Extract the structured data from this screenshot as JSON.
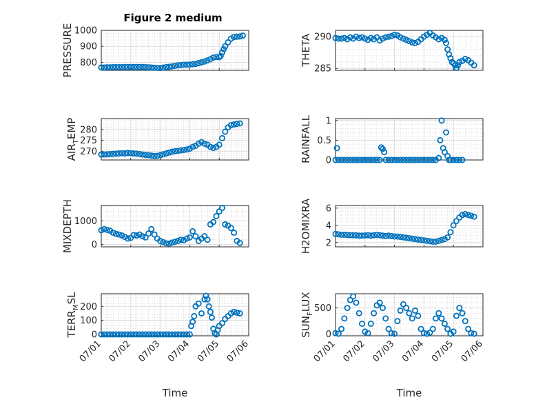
{
  "figure": {
    "title": "Figure 2 medium"
  },
  "chart_data": [
    {
      "type": "scatter",
      "id": "pressure",
      "ylabel_parts": [
        {
          "t": "PRESSURE",
          "sub": false
        }
      ],
      "ylim": [
        750,
        1000
      ],
      "yticks": [
        {
          "v": 800,
          "label": "800"
        },
        {
          "v": 900,
          "label": "900"
        },
        {
          "v": 1000,
          "label": "1000"
        }
      ],
      "x": [
        0,
        0.1,
        0.2,
        0.3,
        0.4,
        0.5,
        0.6,
        0.7,
        0.8,
        0.9,
        1.0,
        1.1,
        1.2,
        1.3,
        1.4,
        1.5,
        1.6,
        1.7,
        1.8,
        1.9,
        2.0,
        2.1,
        2.2,
        2.3,
        2.4,
        2.5,
        2.6,
        2.7,
        2.8,
        2.9,
        3.0,
        3.1,
        3.2,
        3.3,
        3.4,
        3.5,
        3.6,
        3.7,
        3.8,
        3.9,
        4.0,
        4.05,
        4.1,
        4.15,
        4.2,
        4.3,
        4.4,
        4.5,
        4.6,
        4.7,
        4.8
      ],
      "y": [
        768,
        768,
        769,
        769,
        770,
        770,
        770,
        770,
        771,
        771,
        771,
        771,
        771,
        771,
        771,
        770,
        769,
        768,
        766,
        765,
        764,
        767,
        770,
        772,
        775,
        778,
        781,
        783,
        785,
        785,
        786,
        788,
        790,
        795,
        800,
        805,
        812,
        820,
        830,
        833,
        832,
        840,
        862,
        882,
        900,
        925,
        948,
        958,
        960,
        962,
        967
      ]
    },
    {
      "type": "scatter",
      "id": "theta",
      "ylabel_parts": [
        {
          "t": "THETA",
          "sub": false
        }
      ],
      "ylim": [
        284.7,
        291.0
      ],
      "yticks": [
        {
          "v": 285,
          "label": "285"
        },
        {
          "v": 290,
          "label": "290"
        }
      ],
      "x": [
        0,
        0.1,
        0.2,
        0.3,
        0.4,
        0.5,
        0.6,
        0.7,
        0.8,
        0.9,
        1.0,
        1.1,
        1.2,
        1.3,
        1.4,
        1.5,
        1.6,
        1.7,
        1.8,
        1.9,
        2.0,
        2.1,
        2.2,
        2.3,
        2.4,
        2.5,
        2.6,
        2.7,
        2.8,
        2.9,
        3.0,
        3.1,
        3.2,
        3.3,
        3.4,
        3.5,
        3.6,
        3.7,
        3.75,
        3.8,
        3.85,
        3.9,
        3.95,
        4.0,
        4.05,
        4.1,
        4.15,
        4.2,
        4.3,
        4.4,
        4.5,
        4.6,
        4.7
      ],
      "y": [
        289.8,
        289.7,
        289.7,
        289.8,
        289.6,
        289.9,
        289.7,
        290.0,
        289.8,
        289.9,
        289.7,
        289.5,
        289.8,
        289.6,
        289.9,
        289.4,
        289.7,
        289.9,
        290.0,
        290.1,
        290.3,
        290.2,
        289.9,
        289.7,
        289.5,
        289.3,
        289.1,
        289.0,
        289.2,
        289.6,
        290.0,
        290.3,
        290.6,
        290.2,
        289.9,
        289.6,
        289.8,
        289.5,
        289.0,
        288.0,
        287.2,
        286.6,
        286.0,
        285.8,
        285.5,
        285.1,
        285.5,
        286.0,
        286.2,
        286.5,
        286.3,
        285.9,
        285.5
      ]
    },
    {
      "type": "scatter",
      "id": "air_temp",
      "ylabel_parts": [
        {
          "t": "AIR",
          "sub": false
        },
        {
          "t": "T",
          "sub": true
        },
        {
          "t": "EMP",
          "sub": false
        }
      ],
      "ylim": [
        266,
        285
      ],
      "yticks": [
        {
          "v": 270,
          "label": "270"
        },
        {
          "v": 275,
          "label": "275"
        },
        {
          "v": 280,
          "label": "280"
        }
      ],
      "x": [
        0,
        0.1,
        0.2,
        0.3,
        0.4,
        0.5,
        0.6,
        0.7,
        0.8,
        0.9,
        1.0,
        1.1,
        1.2,
        1.3,
        1.4,
        1.5,
        1.6,
        1.7,
        1.8,
        1.9,
        2.0,
        2.1,
        2.2,
        2.3,
        2.4,
        2.5,
        2.6,
        2.7,
        2.8,
        2.9,
        3.0,
        3.1,
        3.2,
        3.3,
        3.4,
        3.5,
        3.6,
        3.7,
        3.8,
        3.9,
        4.0,
        4.1,
        4.2,
        4.3,
        4.4,
        4.5,
        4.6,
        4.7
      ],
      "y": [
        268.5,
        268.5,
        268.6,
        268.7,
        268.8,
        268.9,
        269.0,
        269.1,
        269.0,
        269.2,
        269.1,
        269.0,
        268.9,
        268.7,
        268.5,
        268.3,
        268.2,
        268.0,
        267.8,
        267.9,
        268.2,
        268.6,
        269.0,
        269.4,
        269.8,
        270.0,
        270.2,
        270.4,
        270.6,
        270.8,
        271.2,
        272.0,
        272.5,
        273.5,
        274.2,
        273.5,
        273.0,
        272.0,
        271.5,
        272.0,
        273.0,
        276.0,
        279.0,
        281.0,
        282.0,
        282.3,
        282.6,
        282.8
      ]
    },
    {
      "type": "scatter",
      "id": "rainfall",
      "ylabel_parts": [
        {
          "t": "RAINFALL",
          "sub": false
        }
      ],
      "ylim": [
        0,
        1.05
      ],
      "yticks": [
        {
          "v": 0,
          "label": "0"
        },
        {
          "v": 0.5,
          "label": "0.5"
        },
        {
          "v": 1,
          "label": "1"
        }
      ],
      "x": [
        0,
        0.05,
        0.1,
        0.2,
        0.3,
        0.4,
        0.5,
        0.6,
        0.7,
        0.8,
        0.9,
        1.0,
        1.1,
        1.2,
        1.3,
        1.4,
        1.5,
        1.55,
        1.6,
        1.65,
        1.7,
        1.8,
        1.9,
        2.0,
        2.1,
        2.2,
        2.3,
        2.4,
        2.5,
        2.6,
        2.7,
        2.8,
        2.9,
        3.0,
        3.1,
        3.2,
        3.3,
        3.4,
        3.5,
        3.55,
        3.6,
        3.65,
        3.7,
        3.75,
        3.8,
        3.85,
        3.9,
        4.0,
        4.1,
        4.2,
        4.3
      ],
      "y": [
        0,
        0.3,
        0,
        0,
        0,
        0,
        0,
        0,
        0,
        0,
        0,
        0,
        0,
        0,
        0,
        0,
        0,
        0.32,
        0.28,
        0.2,
        0,
        0,
        0,
        0,
        0,
        0,
        0,
        0,
        0,
        0,
        0,
        0,
        0,
        0,
        0,
        0,
        0,
        0,
        0.05,
        0.5,
        1.0,
        0.3,
        0.2,
        0.7,
        0.1,
        0,
        0,
        0,
        0,
        0,
        0
      ]
    },
    {
      "type": "scatter",
      "id": "mixdepth",
      "ylabel_parts": [
        {
          "t": "MIXDEPTH",
          "sub": false
        }
      ],
      "ylim": [
        -100,
        1650
      ],
      "yticks": [
        {
          "v": 0,
          "label": "0"
        },
        {
          "v": 1000,
          "label": "1000"
        }
      ],
      "x": [
        0,
        0.1,
        0.2,
        0.3,
        0.4,
        0.5,
        0.6,
        0.7,
        0.8,
        0.9,
        1.0,
        1.1,
        1.2,
        1.3,
        1.4,
        1.5,
        1.6,
        1.7,
        1.8,
        1.9,
        2.0,
        2.1,
        2.2,
        2.3,
        2.4,
        2.5,
        2.6,
        2.7,
        2.8,
        2.9,
        3.0,
        3.1,
        3.2,
        3.3,
        3.4,
        3.5,
        3.6,
        3.7,
        3.8,
        3.9,
        4.0,
        4.1,
        4.2,
        4.3,
        4.4,
        4.5,
        4.6,
        4.7
      ],
      "y": [
        600,
        650,
        620,
        580,
        500,
        450,
        420,
        380,
        320,
        250,
        280,
        400,
        380,
        420,
        350,
        300,
        460,
        650,
        420,
        250,
        150,
        100,
        50,
        40,
        80,
        120,
        150,
        200,
        180,
        250,
        300,
        560,
        350,
        150,
        250,
        350,
        200,
        850,
        950,
        1200,
        1400,
        1550,
        850,
        800,
        700,
        500,
        150,
        60
      ]
    },
    {
      "type": "scatter",
      "id": "h2omixra",
      "ylabel_parts": [
        {
          "t": "H2OMIXRA",
          "sub": false
        }
      ],
      "ylim": [
        1.5,
        6.3
      ],
      "yticks": [
        {
          "v": 2,
          "label": "2"
        },
        {
          "v": 4,
          "label": "4"
        },
        {
          "v": 6,
          "label": "6"
        }
      ],
      "x": [
        0,
        0.1,
        0.2,
        0.3,
        0.4,
        0.5,
        0.6,
        0.7,
        0.8,
        0.9,
        1.0,
        1.1,
        1.2,
        1.3,
        1.4,
        1.5,
        1.6,
        1.7,
        1.8,
        1.9,
        2.0,
        2.1,
        2.2,
        2.3,
        2.4,
        2.5,
        2.6,
        2.7,
        2.8,
        2.9,
        3.0,
        3.1,
        3.2,
        3.3,
        3.4,
        3.5,
        3.6,
        3.7,
        3.8,
        3.9,
        4.0,
        4.1,
        4.2,
        4.3,
        4.4,
        4.5,
        4.6,
        4.7
      ],
      "y": [
        3.0,
        2.95,
        2.9,
        2.9,
        2.88,
        2.85,
        2.85,
        2.83,
        2.8,
        2.8,
        2.82,
        2.85,
        2.8,
        2.85,
        2.9,
        2.85,
        2.8,
        2.75,
        2.8,
        2.75,
        2.7,
        2.7,
        2.65,
        2.6,
        2.55,
        2.5,
        2.45,
        2.4,
        2.35,
        2.3,
        2.25,
        2.2,
        2.15,
        2.1,
        2.1,
        2.2,
        2.3,
        2.4,
        2.6,
        3.2,
        4.0,
        4.5,
        4.9,
        5.2,
        5.3,
        5.2,
        5.1,
        5.0
      ]
    },
    {
      "type": "scatter",
      "id": "terr_msl",
      "ylabel_parts": [
        {
          "t": "TERR",
          "sub": false
        },
        {
          "t": "M",
          "sub": true
        },
        {
          "t": "SL",
          "sub": false
        }
      ],
      "ylim": [
        -10,
        290
      ],
      "yticks": [
        {
          "v": 0,
          "label": "0"
        },
        {
          "v": 100,
          "label": "100"
        },
        {
          "v": 200,
          "label": "200"
        }
      ],
      "xticks": [
        "07/01",
        "07/02",
        "07/03",
        "07/04",
        "07/05",
        "07/06"
      ],
      "xlabel": "Time",
      "x": [
        0,
        0.1,
        0.2,
        0.3,
        0.4,
        0.5,
        0.6,
        0.7,
        0.8,
        0.9,
        1.0,
        1.1,
        1.2,
        1.3,
        1.4,
        1.5,
        1.6,
        1.7,
        1.8,
        1.9,
        2.0,
        2.1,
        2.2,
        2.3,
        2.4,
        2.5,
        2.6,
        2.7,
        2.8,
        2.9,
        3.0,
        3.05,
        3.1,
        3.15,
        3.2,
        3.3,
        3.4,
        3.5,
        3.55,
        3.6,
        3.65,
        3.7,
        3.75,
        3.8,
        3.85,
        3.9,
        3.95,
        4.0,
        4.1,
        4.2,
        4.3,
        4.4,
        4.5,
        4.6,
        4.7
      ],
      "y": [
        0,
        0,
        0,
        0,
        0,
        0,
        0,
        0,
        0,
        0,
        0,
        0,
        0,
        0,
        0,
        0,
        0,
        0,
        0,
        0,
        0,
        0,
        0,
        0,
        0,
        0,
        0,
        0,
        0,
        0,
        0,
        60,
        90,
        130,
        200,
        220,
        150,
        250,
        275,
        250,
        200,
        160,
        120,
        40,
        10,
        0,
        30,
        60,
        80,
        110,
        130,
        150,
        160,
        155,
        150
      ]
    },
    {
      "type": "scatter",
      "id": "sun_flux",
      "ylabel_parts": [
        {
          "t": "SUN",
          "sub": false
        },
        {
          "t": "F",
          "sub": true
        },
        {
          "t": "LUX",
          "sub": false
        }
      ],
      "ylim": [
        -30,
        770
      ],
      "yticks": [
        {
          "v": 0,
          "label": "0"
        },
        {
          "v": 500,
          "label": "500"
        }
      ],
      "xticks": [
        "07/01",
        "07/02",
        "07/03",
        "07/04",
        "07/05",
        "07/06"
      ],
      "xlabel": "Time",
      "x": [
        0,
        0.1,
        0.2,
        0.3,
        0.4,
        0.5,
        0.6,
        0.7,
        0.8,
        0.9,
        1.0,
        1.1,
        1.2,
        1.3,
        1.4,
        1.5,
        1.6,
        1.7,
        1.8,
        1.9,
        2.0,
        2.1,
        2.2,
        2.3,
        2.4,
        2.5,
        2.6,
        2.7,
        2.8,
        2.9,
        3.0,
        3.1,
        3.2,
        3.3,
        3.4,
        3.5,
        3.6,
        3.7,
        3.8,
        3.9,
        4.0,
        4.1,
        4.2,
        4.3,
        4.4,
        4.5,
        4.6,
        4.7
      ],
      "y": [
        20,
        10,
        100,
        300,
        500,
        650,
        720,
        600,
        400,
        200,
        50,
        20,
        200,
        400,
        550,
        600,
        500,
        300,
        100,
        20,
        10,
        250,
        450,
        570,
        500,
        400,
        300,
        450,
        350,
        100,
        20,
        10,
        30,
        100,
        300,
        400,
        300,
        200,
        100,
        10,
        50,
        350,
        500,
        400,
        250,
        100,
        20,
        10
      ]
    }
  ],
  "style": {
    "marker_color": "#0072BD",
    "axis_color": "#262626"
  }
}
